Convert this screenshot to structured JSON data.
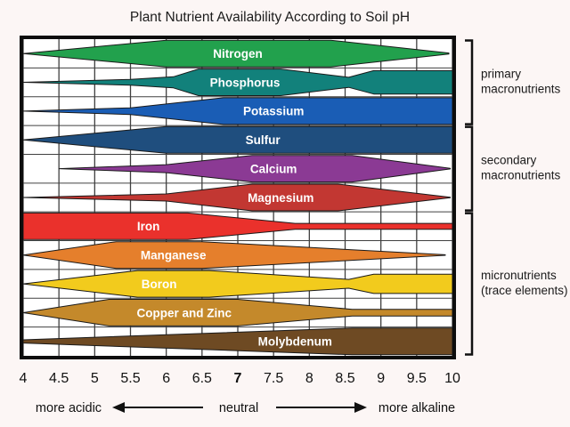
{
  "title": "Plant Nutrient Availability According to Soil pH",
  "chart_data": {
    "type": "area",
    "description": "Horizontal spindle-shaped bands; band thickness = nutrient availability across soil pH",
    "x_axis": {
      "min": 4,
      "max": 10,
      "ticks": [
        "4",
        "4.5",
        "5",
        "5.5",
        "6",
        "6.5",
        "7",
        "7.5",
        "8",
        "8.5",
        "9",
        "9.5",
        "10"
      ],
      "bold_tick": "7"
    },
    "grid": true,
    "series": [
      {
        "name": "Nitrogen",
        "group": "primary macronutrients",
        "color": "#22A14D",
        "label_ph": 7.0,
        "profile": [
          [
            4,
            0
          ],
          [
            6,
            1
          ],
          [
            8.3,
            1
          ],
          [
            9.95,
            0.04
          ]
        ]
      },
      {
        "name": "Phosphorus",
        "group": "primary macronutrients",
        "color": "#12817B",
        "label_ph": 7.1,
        "profile": [
          [
            4,
            0
          ],
          [
            5.5,
            0.22
          ],
          [
            6.1,
            0.42
          ],
          [
            6.45,
            1
          ],
          [
            7.6,
            1
          ],
          [
            8.55,
            0.38
          ],
          [
            8.9,
            0.88
          ],
          [
            10,
            0.88
          ]
        ]
      },
      {
        "name": "Potassium",
        "group": "primary macronutrients",
        "color": "#1A5DB5",
        "label_ph": 7.5,
        "profile": [
          [
            4,
            0
          ],
          [
            5.5,
            0.25
          ],
          [
            6.8,
            1
          ],
          [
            10,
            1
          ]
        ]
      },
      {
        "name": "Sulfur",
        "group": "secondary macronutrients",
        "color": "#1F4E7E",
        "label_ph": 7.35,
        "profile": [
          [
            4,
            0
          ],
          [
            6,
            1
          ],
          [
            10,
            1
          ]
        ]
      },
      {
        "name": "Calcium",
        "group": "secondary macronutrients",
        "color": "#8B3A94",
        "label_ph": 7.5,
        "profile": [
          [
            4.5,
            0
          ],
          [
            6,
            0.3
          ],
          [
            7.2,
            1
          ],
          [
            8.6,
            1
          ],
          [
            9.97,
            0.02
          ]
        ]
      },
      {
        "name": "Magnesium",
        "group": "secondary macronutrients",
        "color": "#C23732",
        "label_ph": 7.6,
        "profile": [
          [
            4,
            0
          ],
          [
            6,
            0.27
          ],
          [
            7.2,
            1
          ],
          [
            8.4,
            1
          ],
          [
            9.97,
            0.02
          ]
        ]
      },
      {
        "name": "Iron",
        "group": "micronutrients (trace elements)",
        "color": "#EA312C",
        "label_ph": 5.75,
        "profile": [
          [
            4,
            1
          ],
          [
            6.3,
            1
          ],
          [
            7.8,
            0.22
          ],
          [
            10,
            0.22
          ]
        ]
      },
      {
        "name": "Manganese",
        "group": "micronutrients (trace elements)",
        "color": "#E57F2C",
        "label_ph": 6.1,
        "profile": [
          [
            4,
            0
          ],
          [
            5.3,
            1
          ],
          [
            6.5,
            1
          ],
          [
            9.9,
            0.02
          ]
        ]
      },
      {
        "name": "Boron",
        "group": "micronutrients (trace elements)",
        "color": "#F2CB1D",
        "label_ph": 5.9,
        "profile": [
          [
            4,
            0
          ],
          [
            5.6,
            1
          ],
          [
            6.6,
            1
          ],
          [
            8.55,
            0.33
          ],
          [
            8.9,
            0.72
          ],
          [
            10,
            0.72
          ]
        ]
      },
      {
        "name": "Copper and Zinc",
        "group": "micronutrients (trace elements)",
        "color": "#C4892B",
        "label_ph": 6.25,
        "profile": [
          [
            4,
            0
          ],
          [
            5.2,
            1
          ],
          [
            7,
            1
          ],
          [
            8.6,
            0.25
          ],
          [
            10,
            0.25
          ]
        ]
      },
      {
        "name": "Molybdenum",
        "group": "micronutrients (trace elements)",
        "color": "#6E4A23",
        "label_ph": 7.8,
        "profile": [
          [
            4,
            0.12
          ],
          [
            8.6,
            1
          ],
          [
            10,
            1
          ]
        ]
      }
    ]
  },
  "groups": [
    {
      "line1": "primary",
      "line2": "macronutrients",
      "row_start": 0,
      "row_end": 2
    },
    {
      "line1": "secondary",
      "line2": "macronutrients",
      "row_start": 3,
      "row_end": 5
    },
    {
      "line1": "micronutrients",
      "line2": "(trace elements)",
      "row_start": 6,
      "row_end": 10
    }
  ],
  "footer": {
    "left": "more acidic",
    "center": "neutral",
    "right": "more alkaline"
  },
  "colors": {
    "background": "#fcf6f5",
    "plot_background": "#ffffff",
    "gridline": "#404040",
    "border": "#0d0d0d",
    "bracket": "#111111"
  }
}
